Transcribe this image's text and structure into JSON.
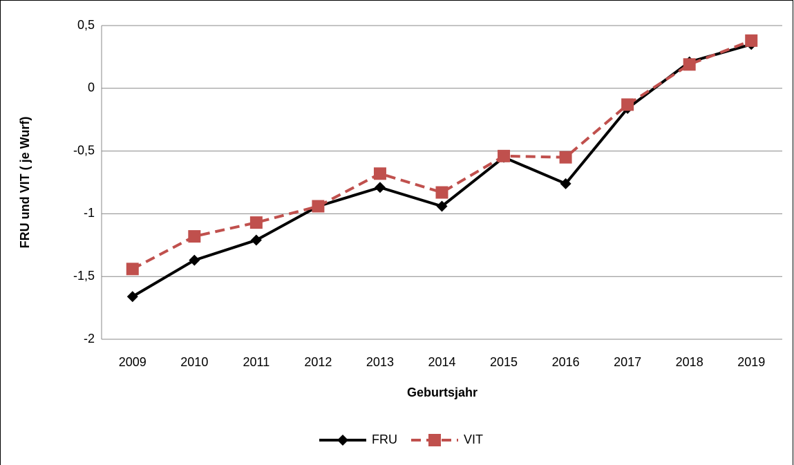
{
  "chart_data": {
    "type": "line",
    "categories": [
      "2009",
      "2010",
      "2011",
      "2012",
      "2013",
      "2014",
      "2015",
      "2016",
      "2017",
      "2018",
      "2019"
    ],
    "series": [
      {
        "name": "FRU",
        "color": "#000000",
        "line_style": "solid",
        "marker": "diamond",
        "values": [
          -1.66,
          -1.37,
          -1.21,
          -0.94,
          -0.79,
          -0.94,
          -0.55,
          -0.76,
          -0.16,
          0.21,
          0.35
        ]
      },
      {
        "name": "VIT",
        "color": "#c0504d",
        "line_style": "dashed",
        "marker": "square",
        "values": [
          -1.44,
          -1.18,
          -1.07,
          -0.94,
          -0.68,
          -0.83,
          -0.54,
          -0.55,
          -0.13,
          0.19,
          0.38
        ]
      }
    ],
    "ylim": [
      -2,
      0.5
    ],
    "yticks": [
      -2,
      {
        "value": -1.5,
        "label": "-1,5"
      },
      -1,
      {
        "value": -0.5,
        "label": "-0,5"
      },
      0,
      {
        "value": 0.5,
        "label": "0,5"
      }
    ],
    "x_label": "Geburtsjahr",
    "y_label": "FRU und  VIT  ( je Wurf)",
    "grid": true,
    "legend_position": "bottom"
  }
}
